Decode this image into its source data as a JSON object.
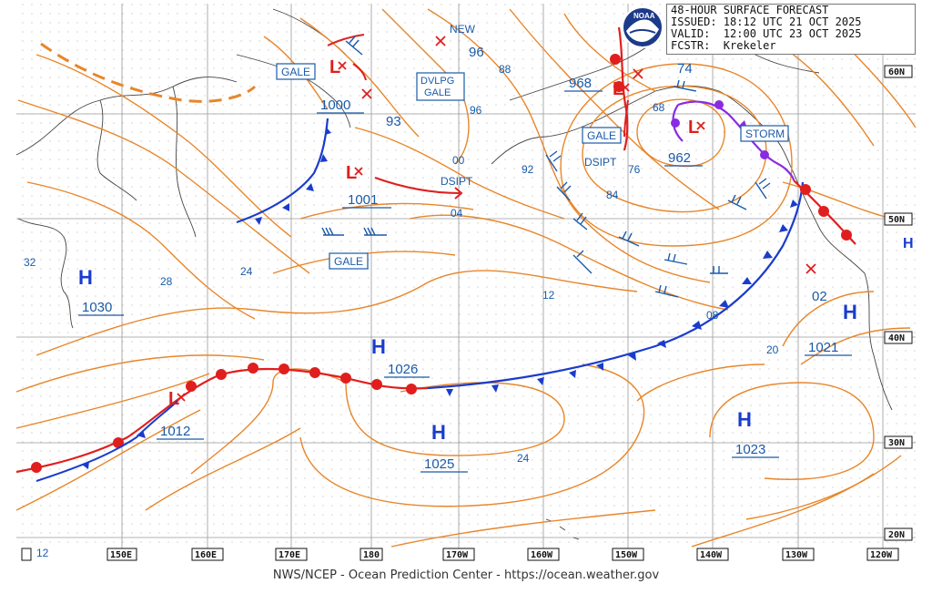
{
  "header": {
    "line1": "48-HOUR SURFACE FORECAST",
    "line2": "ISSUED: 18:12 UTC 21 OCT 2025",
    "line3": "VALID:  12:00 UTC 23 OCT 2025",
    "line4": "FCSTR:  Krekeler"
  },
  "credit": "NWS/NCEP - Ocean Prediction Center - https://ocean.weather.gov",
  "logo_text": "NOAA",
  "colors": {
    "isobar": "#e8862a",
    "cold_front": "#1a3ccc",
    "warm_front": "#e01e1e",
    "occluded": "#8a2be2",
    "label_blue": "#1a5aa8",
    "grid": "#999999",
    "coast": "#444444"
  },
  "longitude_labels": [
    "150E",
    "160E",
    "170E",
    "180",
    "170W",
    "160W",
    "150W",
    "140W",
    "130W",
    "120W"
  ],
  "latitude_labels": [
    "60N",
    "50N",
    "40N",
    "30N",
    "20N"
  ],
  "highs": [
    {
      "letter": "H",
      "value": "1030"
    },
    {
      "letter": "H",
      "value": "1026"
    },
    {
      "letter": "H",
      "value": "1025"
    },
    {
      "letter": "H",
      "value": "1023"
    },
    {
      "letter": "H",
      "value": "1021"
    }
  ],
  "lows": [
    {
      "letter": "L",
      "value": "1000"
    },
    {
      "letter": "L",
      "value": "1001"
    },
    {
      "letter": "L",
      "value": "962"
    },
    {
      "letter": "L",
      "value": "968"
    },
    {
      "letter": "L",
      "value": "1012"
    }
  ],
  "warnings": [
    "GALE",
    "DVLPG GALE",
    "GALE",
    "GALE",
    "STORM"
  ],
  "tags": [
    "NEW",
    "DSIPT",
    "DSIPT"
  ],
  "isobar_labels": [
    "96",
    "88",
    "96",
    "93",
    "00",
    "04",
    "92",
    "84",
    "76",
    "74",
    "68",
    "12",
    "08",
    "02",
    "20",
    "24",
    "28",
    "32",
    "24",
    "12"
  ]
}
